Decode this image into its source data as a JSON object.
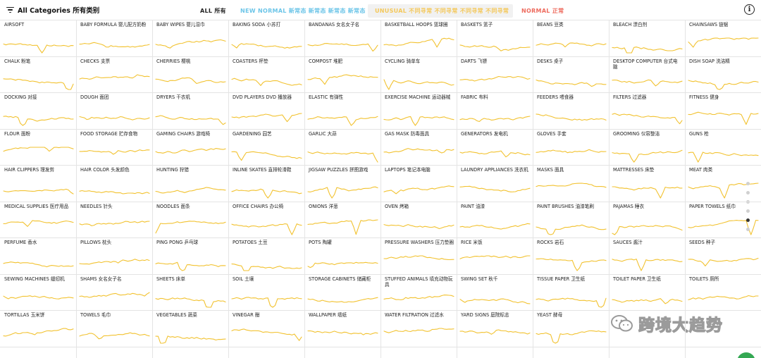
{
  "header": {
    "filter_label": "All Categories 所有类别",
    "chip_all": "ALL 所有",
    "chip_new": "NEW NORMAL 新常态 新常态 新常态 新常态",
    "chip_unusual": "UNUSUAL 不同寻常 不同寻常 不同寻常 不同寻常",
    "chip_normal": "NORMAL 正常",
    "info_glyph": "i"
  },
  "colors": {
    "trend_line": "#f2c230",
    "new_normal": "#6cc5e8",
    "unusual": "#f4c85a",
    "normal": "#ee6b5e"
  },
  "categories": [
    "AIRSOFT",
    "BABY FORMULA 婴儿配方奶粉",
    "BABY WIPES 婴儿湿巾",
    "BAKING SODA 小苏打",
    "BANDANAS 女名女子名",
    "BASKETBALL HOOPS 篮球圈",
    "BASKETS 篮子",
    "BEANS 豆类",
    "BLEACH 漂白剂",
    "CHAINSAWS 链锯",
    "CHALK 粉笔",
    "CHECKS 支票",
    "CHERRIES 樱桃",
    "COASTERS 杯垫",
    "COMPOST 堆肥",
    "CYCLING 骑单车",
    "DARTS 飞镖",
    "DESKS 桌子",
    "DESKTOP COMPUTER 台式电脑",
    "DISH SOAP 洗洁精",
    "DOCKING 对接",
    "DOUGH 面团",
    "DRYERS 干衣机",
    "DVD PLAYERS DVD 播放器",
    "ELASTIC 有弹性",
    "EXERCISE MACHINE 运动器械",
    "FABRIC 布料",
    "FEEDERS 喂食器",
    "FILTERS 过滤器",
    "FITNESS 健身",
    "FLOUR 面粉",
    "FOOD STORAGE 贮存食物",
    "GAMING CHAIRS 游戏椅",
    "GARDENING 园艺",
    "GARLIC 大蒜",
    "GAS MASK 防毒面具",
    "GENERATORS 发电机",
    "GLOVES 手套",
    "GROOMING 仪容整洁",
    "GUNS 枪",
    "HAIR CLIPPERS 理发剪",
    "HAIR COLOR 头发颜色",
    "HUNTING 狩猎",
    "INLINE SKATES 直排轮滑鞋",
    "JIGSAW PUZZLES 拼图游戏",
    "LAPTOPS 笔记本电脑",
    "LAUNDRY APPLIANCES 洗衣机",
    "MASKS 面具",
    "MATTRESSES 床垫",
    "MEAT 肉类",
    "MEDICAL SUPPLIES 医疗用品",
    "NEEDLES 针头",
    "NOODLES 面条",
    "OFFICE CHAIRS 办公椅",
    "ONIONS 洋葱",
    "OVEN 烤箱",
    "PAINT 油漆",
    "PAINT BRUSHES 油漆笔刷",
    "PAJAMAS 睡衣",
    "PAPER TOWELS 纸巾",
    "PERFUME 香水",
    "PILLOWS 枕头",
    "PING PONG 乒乓球",
    "POTATOES 土豆",
    "POTS 陶罐",
    "PRESSURE WASHERS 压力垫圈",
    "RICE 米饭",
    "ROCKS 岩石",
    "SAUCES 酱汁",
    "SEEDS 种子",
    "SEWING MACHINES 缝纫机",
    "SHAMS 女名女子名",
    "SHEETS 床单",
    "SOIL 土壤",
    "STORAGE CABINETS 储藏柜",
    "STUFFED ANIMALS 填充动物玩具",
    "SWING SET 秋千",
    "TISSUE PAPER 卫生纸",
    "TOILET PAPER 卫生纸",
    "TOILETS 厕所",
    "TORTILLAS 玉米饼",
    "TOWELS 毛巾",
    "VEGETABLES 蔬菜",
    "VINEGAR 醋",
    "WALLPAPER 墙纸",
    "WATER FILTRATION 过滤水",
    "YARD SIGNS 庭院标志",
    "YEAST 酵母",
    "",
    ""
  ],
  "pagination": {
    "pages": 6,
    "active_page": 5
  },
  "watermark": {
    "text": "跨境大趋势"
  }
}
